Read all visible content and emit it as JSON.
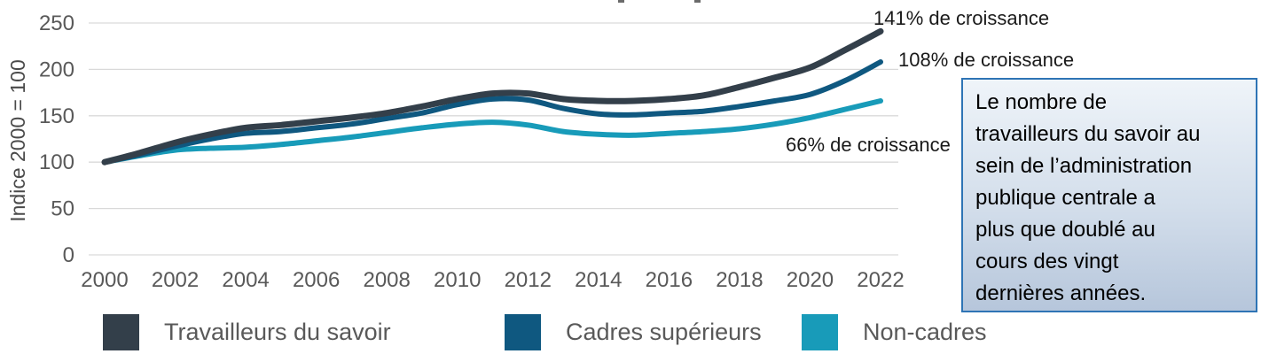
{
  "chart_data": {
    "type": "line",
    "title": "",
    "ylabel": "Indice 2000 = 100",
    "xlabel": "",
    "x": [
      2000,
      2001,
      2002,
      2003,
      2004,
      2005,
      2006,
      2007,
      2008,
      2009,
      2010,
      2011,
      2012,
      2013,
      2014,
      2015,
      2016,
      2017,
      2018,
      2019,
      2020,
      2021,
      2022
    ],
    "x_tick_labels": [
      "2000",
      "2002",
      "2004",
      "2006",
      "2008",
      "2010",
      "2012",
      "2014",
      "2016",
      "2018",
      "2020",
      "2022"
    ],
    "y_ticks": [
      0,
      50,
      100,
      150,
      200,
      250
    ],
    "ylim": [
      0,
      250
    ],
    "grid": "horizontal-only",
    "legend_position": "bottom",
    "series": [
      {
        "name": "Travailleurs du savoir",
        "color": "#333F4A",
        "annotation": "141% de croissance",
        "values": [
          100,
          110,
          121,
          130,
          137,
          140,
          144,
          148,
          153,
          160,
          168,
          174,
          174,
          168,
          166,
          166,
          168,
          172,
          181,
          191,
          202,
          221,
          241
        ]
      },
      {
        "name": "Cadres supérieurs",
        "color": "#0F5880",
        "annotation": "108% de croissance",
        "values": [
          100,
          108,
          117,
          125,
          131,
          133,
          137,
          141,
          147,
          153,
          162,
          168,
          167,
          158,
          152,
          151,
          153,
          155,
          160,
          166,
          173,
          188,
          208
        ]
      },
      {
        "name": "Non-cadres",
        "color": "#189BB9",
        "annotation": "66% de croissance",
        "values": [
          100,
          107,
          113,
          115,
          116,
          119,
          123,
          127,
          132,
          137,
          141,
          143,
          140,
          133,
          130,
          129,
          131,
          133,
          136,
          141,
          148,
          157,
          166
        ]
      }
    ]
  },
  "callout": {
    "text": "Le nombre de\ntravailleurs du savoir au\nsein de l’administration\npublique centrale a\nplus que doublé au\ncours des vingt\ndernières années."
  },
  "colors": {
    "grid": "#D9D9D9",
    "tick_text": "#595959",
    "axis_title_text": "#4A4A4A",
    "annotation_text": "#1A1A1A",
    "callout_border": "#2E74B5",
    "callout_bg_top": "#EFF4F9",
    "callout_bg_bottom": "#B6C6DB",
    "legend_text": "#595959"
  }
}
